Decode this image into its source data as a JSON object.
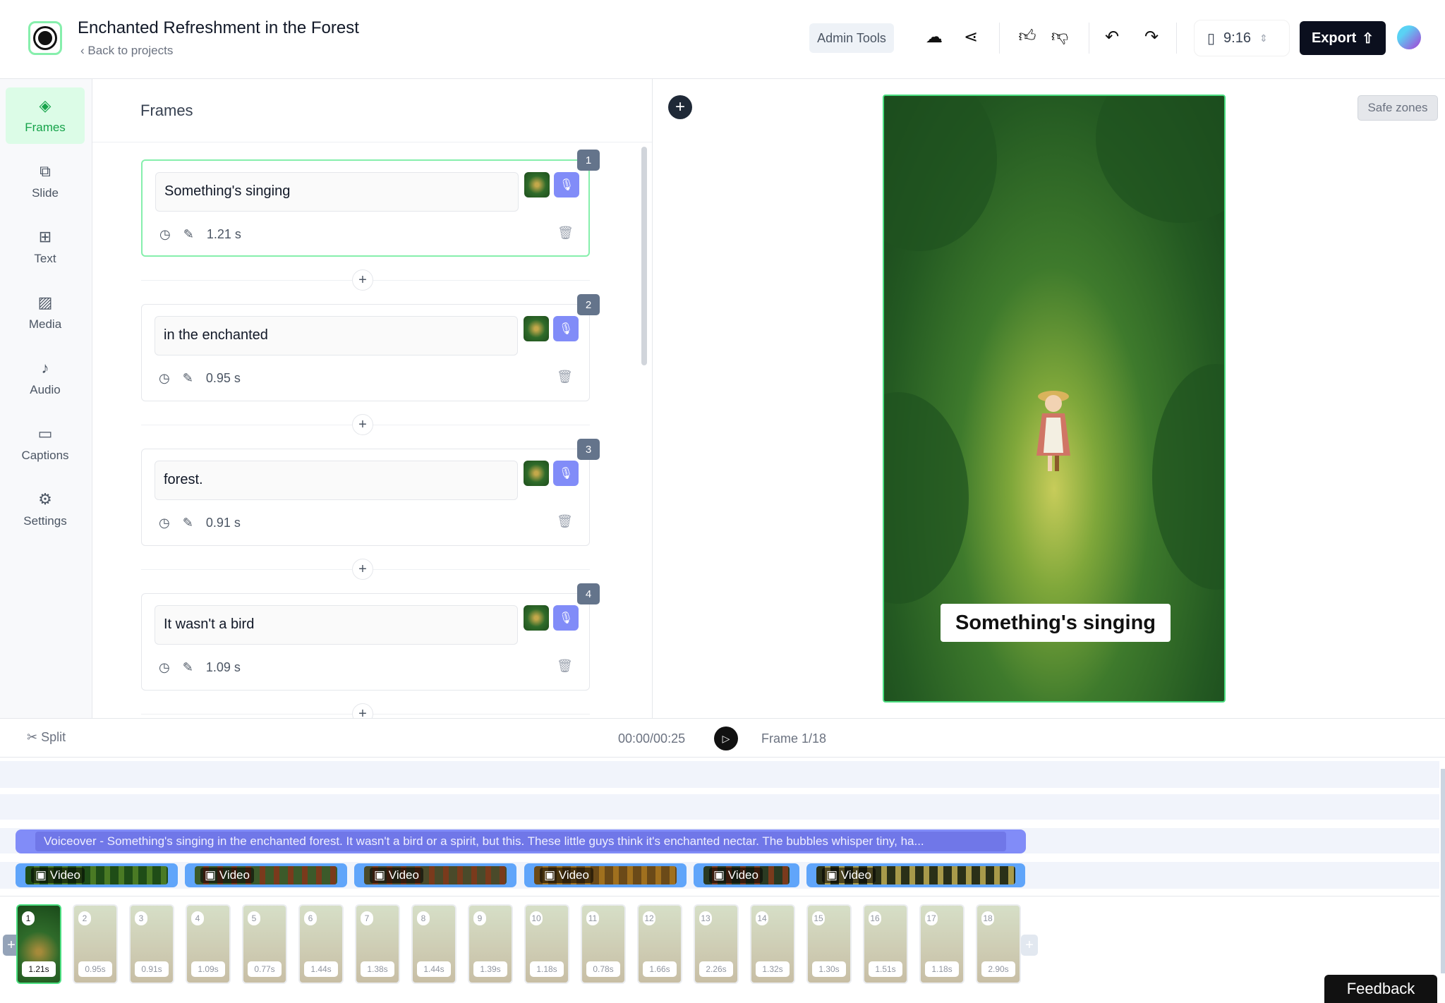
{
  "header": {
    "title": "Enchanted Refreshment in the Forest",
    "back": "Back to projects",
    "admin": "Admin Tools",
    "ratio": "9:16",
    "export": "Export"
  },
  "nav": [
    {
      "label": "Frames",
      "icon": "layers-icon"
    },
    {
      "label": "Slide",
      "icon": "slide-icon"
    },
    {
      "label": "Text",
      "icon": "text-icon"
    },
    {
      "label": "Media",
      "icon": "image-icon"
    },
    {
      "label": "Audio",
      "icon": "music-icon"
    },
    {
      "label": "Captions",
      "icon": "captions-icon"
    },
    {
      "label": "Settings",
      "icon": "gear-icon"
    }
  ],
  "frames": {
    "title": "Frames",
    "items": [
      {
        "num": "1",
        "text": "Something's singing",
        "duration": "1.21 s"
      },
      {
        "num": "2",
        "text": "in the enchanted",
        "duration": "0.95 s"
      },
      {
        "num": "3",
        "text": "forest.",
        "duration": "0.91 s"
      },
      {
        "num": "4",
        "text": "It wasn't a bird",
        "duration": "1.09 s"
      }
    ]
  },
  "preview": {
    "safe_zones": "Safe zones",
    "caption": "Something's singing"
  },
  "controls": {
    "split": "Split",
    "time": "00:00/00:25",
    "frame": "Frame 1/18"
  },
  "timeline": {
    "voiceover": "Voiceover - Something's singing in the enchanted forest. It wasn't a bird or a spirit, but this. These little guys think it's enchanted nectar. The bubbles whisper tiny, ha...",
    "clip_label": "Video",
    "strip": [
      {
        "n": "1",
        "d": "1.21s"
      },
      {
        "n": "2",
        "d": "0.95s"
      },
      {
        "n": "3",
        "d": "0.91s"
      },
      {
        "n": "4",
        "d": "1.09s"
      },
      {
        "n": "5",
        "d": "0.77s"
      },
      {
        "n": "6",
        "d": "1.44s"
      },
      {
        "n": "7",
        "d": "1.38s"
      },
      {
        "n": "8",
        "d": "1.44s"
      },
      {
        "n": "9",
        "d": "1.39s"
      },
      {
        "n": "10",
        "d": "1.18s"
      },
      {
        "n": "11",
        "d": "0.78s"
      },
      {
        "n": "12",
        "d": "1.66s"
      },
      {
        "n": "13",
        "d": "2.26s"
      },
      {
        "n": "14",
        "d": "1.32s"
      },
      {
        "n": "15",
        "d": "1.30s"
      },
      {
        "n": "16",
        "d": "1.51s"
      },
      {
        "n": "17",
        "d": "1.18s"
      },
      {
        "n": "18",
        "d": "2.90s"
      }
    ]
  },
  "feedback": "Feedback"
}
